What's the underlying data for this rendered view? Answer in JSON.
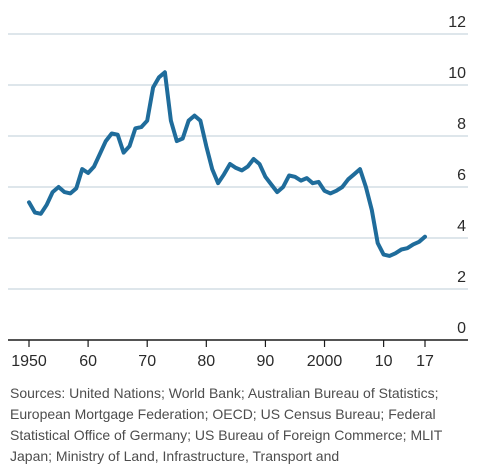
{
  "chart_data": {
    "type": "line",
    "title": "",
    "xlabel": "",
    "ylabel": "",
    "x_tick_labels": [
      "1950",
      "60",
      "70",
      "80",
      "90",
      "2000",
      "10",
      "17"
    ],
    "x_tick_values": [
      1950,
      1960,
      1970,
      1980,
      1990,
      2000,
      2010,
      2017
    ],
    "y_tick_labels": [
      "0",
      "2",
      "4",
      "6",
      "8",
      "10",
      "12"
    ],
    "y_tick_values": [
      0,
      2,
      4,
      6,
      8,
      10,
      12
    ],
    "xlim": [
      1947,
      2020
    ],
    "ylim": [
      0,
      12
    ],
    "y_axis_position": "right",
    "grid": "horizontal",
    "legend": "none",
    "series_color": "#1f6c9b",
    "grid_color": "#c9d6df",
    "series": [
      {
        "x": [
          1950,
          1951,
          1952,
          1953,
          1954,
          1955,
          1956,
          1957,
          1958,
          1959,
          1960,
          1961,
          1962,
          1963,
          1964,
          1965,
          1966,
          1967,
          1968,
          1969,
          1970,
          1971,
          1972,
          1973,
          1974,
          1975,
          1976,
          1977,
          1978,
          1979,
          1980,
          1981,
          1982,
          1983,
          1984,
          1985,
          1986,
          1987,
          1988,
          1989,
          1990,
          1991,
          1992,
          1993,
          1994,
          1995,
          1996,
          1997,
          1998,
          1999,
          2000,
          2001,
          2002,
          2003,
          2004,
          2005,
          2006,
          2007,
          2008,
          2009,
          2010,
          2011,
          2012,
          2013,
          2014,
          2015,
          2016,
          2017
        ],
        "y": [
          5.4,
          5.0,
          4.95,
          5.3,
          5.8,
          6.0,
          5.8,
          5.75,
          5.95,
          6.7,
          6.55,
          6.8,
          7.3,
          7.8,
          8.1,
          8.05,
          7.35,
          7.6,
          8.3,
          8.35,
          8.6,
          9.9,
          10.3,
          10.5,
          8.6,
          7.8,
          7.9,
          8.6,
          8.8,
          8.6,
          7.6,
          6.7,
          6.15,
          6.5,
          6.9,
          6.75,
          6.65,
          6.8,
          7.1,
          6.9,
          6.4,
          6.1,
          5.8,
          6.0,
          6.45,
          6.4,
          6.25,
          6.35,
          6.15,
          6.2,
          5.85,
          5.75,
          5.85,
          6.0,
          6.3,
          6.5,
          6.7,
          6.0,
          5.1,
          3.8,
          3.35,
          3.3,
          3.4,
          3.55,
          3.6,
          3.75,
          3.85,
          4.05
        ]
      }
    ]
  },
  "source_note": "Sources: United Nations; World Bank; Australian Bureau of Statistics; European Mortgage Federation; OECD; US Census Bureau; Federal Statistical Office of Germany; US Bureau of Foreign Commerce; MLIT Japan; Ministry of Land, Infrastructure, Transport and"
}
